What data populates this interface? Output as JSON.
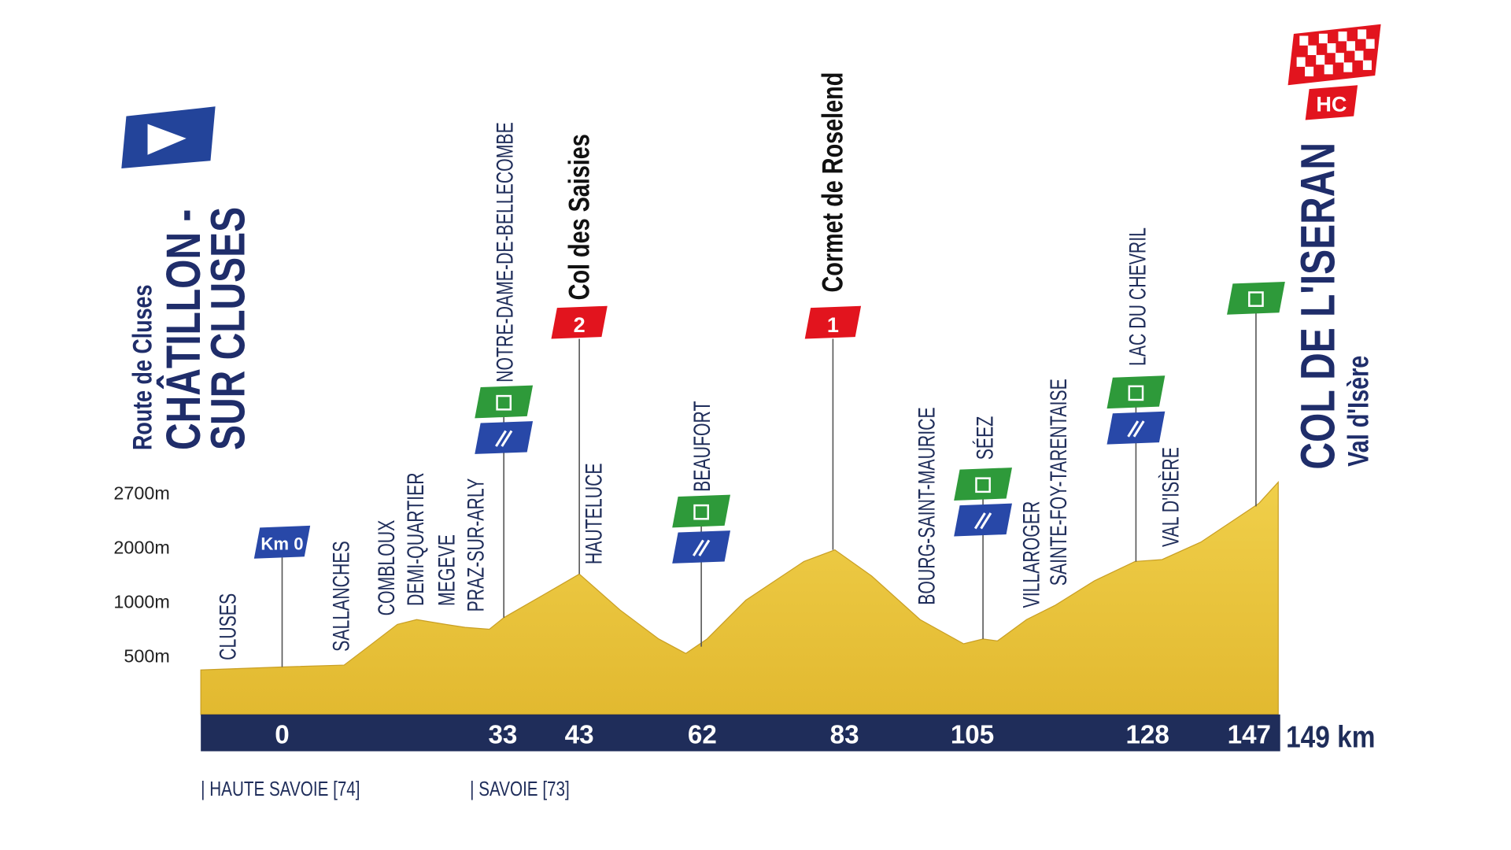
{
  "start": {
    "subtitle": "Route de Cluses",
    "name_line1": "CHÂTILLON -",
    "name_line2": "SUR CLUSES"
  },
  "finish": {
    "name": "COL DE L'ISERAN",
    "subtitle": "Val d'Isère",
    "category": "HC"
  },
  "altitude_labels": [
    "2700m",
    "2000m",
    "1000m",
    "500m"
  ],
  "km_zero_label": "Km 0",
  "km_markers": [
    0,
    33,
    43,
    62,
    83,
    105,
    128,
    147
  ],
  "total_distance": "149 km",
  "climbs": [
    {
      "name": "Col des Saisies",
      "category": "2"
    },
    {
      "name": "Cormet de Roselend",
      "category": "1"
    }
  ],
  "places": [
    "CLUSES",
    "SALLANCHES",
    "COMBLOUX",
    "DEMI-QUARTIER",
    "MEGEVE",
    "PRAZ-SUR-ARLY",
    "NOTRE-DAME-DE-BELLECOMBE",
    "HAUTELUCE",
    "BEAUFORT",
    "BOURG-SAINT-MAURICE",
    "SÉEZ",
    "VILLAROGER",
    "SAINTE-FOY-TARENTAISE",
    "LAC DU CHEVRIL",
    "VAL D'ISÈRE"
  ],
  "departments": [
    "| HAUTE SAVOIE [74]",
    "| SAVOIE [73]"
  ]
}
